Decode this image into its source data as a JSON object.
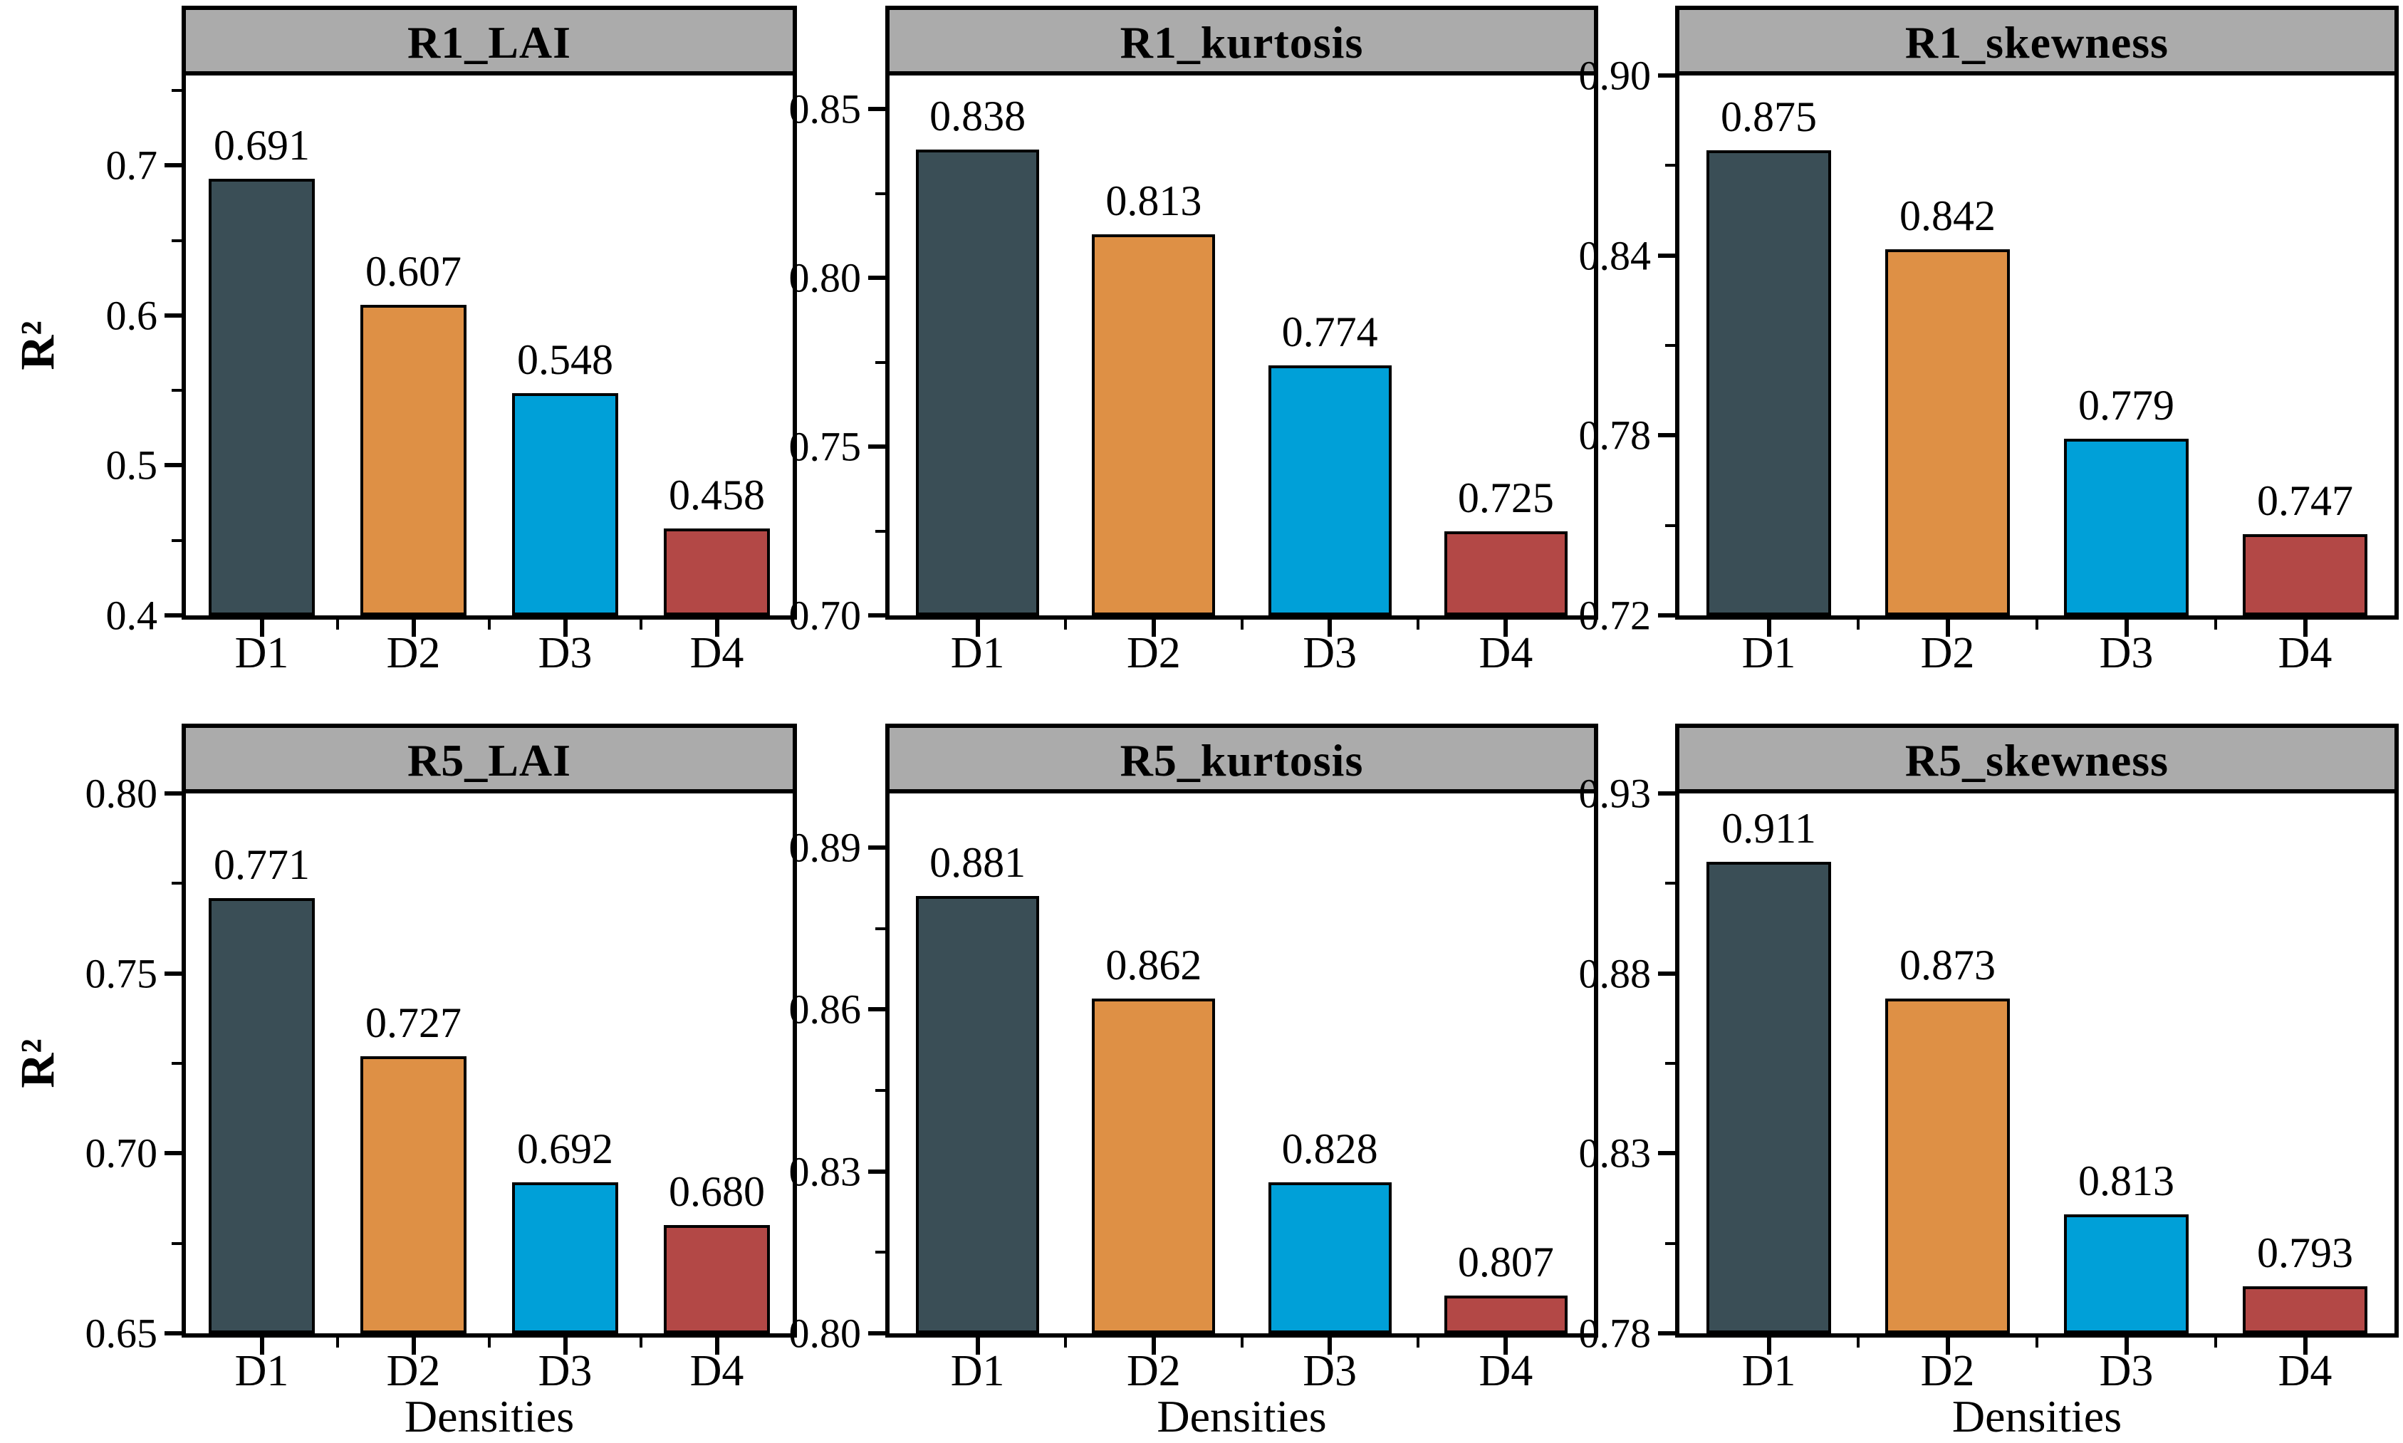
{
  "style": {
    "header_bg": "#ababab",
    "frame_color": "#000000",
    "bar_colors": [
      "#3a4e56",
      "#de9045",
      "#00a0d8",
      "#b34846"
    ],
    "background": "#ffffff"
  },
  "chart_data": [
    {
      "type": "bar",
      "title": "R1_LAI",
      "categories": [
        "D1",
        "D2",
        "D3",
        "D4"
      ],
      "values": [
        0.691,
        0.607,
        0.548,
        0.458
      ],
      "bar_labels": [
        "0.691",
        "0.607",
        "0.548",
        "0.458"
      ],
      "xlabel": "",
      "ylabel": "R²",
      "ylim": [
        0.4,
        0.76
      ],
      "yticks": [
        0.4,
        0.5,
        0.6,
        0.7
      ],
      "ytick_labels": [
        "0.4",
        "0.5",
        "0.6",
        "0.7"
      ],
      "minor_yticks": [
        0.45,
        0.55,
        0.65,
        0.75
      ],
      "grid": false,
      "legend_position": "none"
    },
    {
      "type": "bar",
      "title": "R1_kurtosis",
      "categories": [
        "D1",
        "D2",
        "D3",
        "D4"
      ],
      "values": [
        0.838,
        0.813,
        0.774,
        0.725
      ],
      "bar_labels": [
        "0.838",
        "0.813",
        "0.774",
        "0.725"
      ],
      "xlabel": "",
      "ylabel": "",
      "ylim": [
        0.7,
        0.86
      ],
      "yticks": [
        0.7,
        0.75,
        0.8,
        0.85
      ],
      "ytick_labels": [
        "0.70",
        "0.75",
        "0.80",
        "0.85"
      ],
      "minor_yticks": [
        0.725,
        0.775,
        0.825
      ],
      "grid": false,
      "legend_position": "none"
    },
    {
      "type": "bar",
      "title": "R1_skewness",
      "categories": [
        "D1",
        "D2",
        "D3",
        "D4"
      ],
      "values": [
        0.875,
        0.842,
        0.779,
        0.747
      ],
      "bar_labels": [
        "0.875",
        "0.842",
        "0.779",
        "0.747"
      ],
      "xlabel": "",
      "ylabel": "",
      "ylim": [
        0.72,
        0.9
      ],
      "yticks": [
        0.72,
        0.78,
        0.84,
        0.9
      ],
      "ytick_labels": [
        "0.72",
        "0.78",
        "0.84",
        "0.90"
      ],
      "minor_yticks": [
        0.75,
        0.81,
        0.87
      ],
      "grid": false,
      "legend_position": "none"
    },
    {
      "type": "bar",
      "title": "R5_LAI",
      "categories": [
        "D1",
        "D2",
        "D3",
        "D4"
      ],
      "values": [
        0.771,
        0.727,
        0.692,
        0.68
      ],
      "bar_labels": [
        "0.771",
        "0.727",
        "0.692",
        "0.680"
      ],
      "xlabel": "Densities",
      "ylabel": "R²",
      "ylim": [
        0.65,
        0.8
      ],
      "yticks": [
        0.65,
        0.7,
        0.75,
        0.8
      ],
      "ytick_labels": [
        "0.65",
        "0.70",
        "0.75",
        "0.80"
      ],
      "minor_yticks": [
        0.675,
        0.725,
        0.775
      ],
      "grid": false,
      "legend_position": "none"
    },
    {
      "type": "bar",
      "title": "R5_kurtosis",
      "categories": [
        "D1",
        "D2",
        "D3",
        "D4"
      ],
      "values": [
        0.881,
        0.862,
        0.828,
        0.807
      ],
      "bar_labels": [
        "0.881",
        "0.862",
        "0.828",
        "0.807"
      ],
      "xlabel": "Densities",
      "ylabel": "",
      "ylim": [
        0.8,
        0.9
      ],
      "yticks": [
        0.8,
        0.83,
        0.86,
        0.89
      ],
      "ytick_labels": [
        "0.80",
        "0.83",
        "0.86",
        "0.89"
      ],
      "minor_yticks": [
        0.815,
        0.845,
        0.875
      ],
      "grid": false,
      "legend_position": "none"
    },
    {
      "type": "bar",
      "title": "R5_skewness",
      "categories": [
        "D1",
        "D2",
        "D3",
        "D4"
      ],
      "values": [
        0.911,
        0.873,
        0.813,
        0.793
      ],
      "bar_labels": [
        "0.911",
        "0.873",
        "0.813",
        "0.793"
      ],
      "xlabel": "Densities",
      "ylabel": "",
      "ylim": [
        0.78,
        0.93
      ],
      "yticks": [
        0.78,
        0.83,
        0.88,
        0.93
      ],
      "ytick_labels": [
        "0.78",
        "0.83",
        "0.88",
        "0.93"
      ],
      "minor_yticks": [
        0.805,
        0.855,
        0.905
      ],
      "grid": false,
      "legend_position": "none"
    }
  ]
}
